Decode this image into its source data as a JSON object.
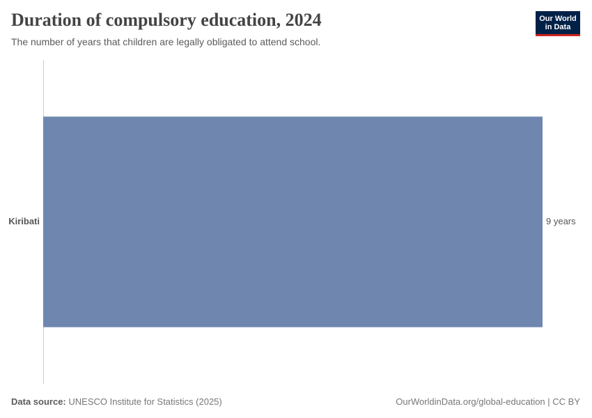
{
  "chart_data": {
    "type": "bar",
    "orientation": "horizontal",
    "title": "Duration of compulsory education, 2024",
    "subtitle": "The number of years that children are legally obligated to attend school.",
    "categories": [
      "Kiribati"
    ],
    "values": [
      9
    ],
    "value_labels": [
      "9 years"
    ],
    "color": "#6f87af",
    "source_label": "Data source:",
    "source": "UNESCO Institute for Statistics (2025)",
    "url": "OurWorldinData.org/global-education | CC BY",
    "logo": [
      "Our World",
      "in Data"
    ]
  }
}
